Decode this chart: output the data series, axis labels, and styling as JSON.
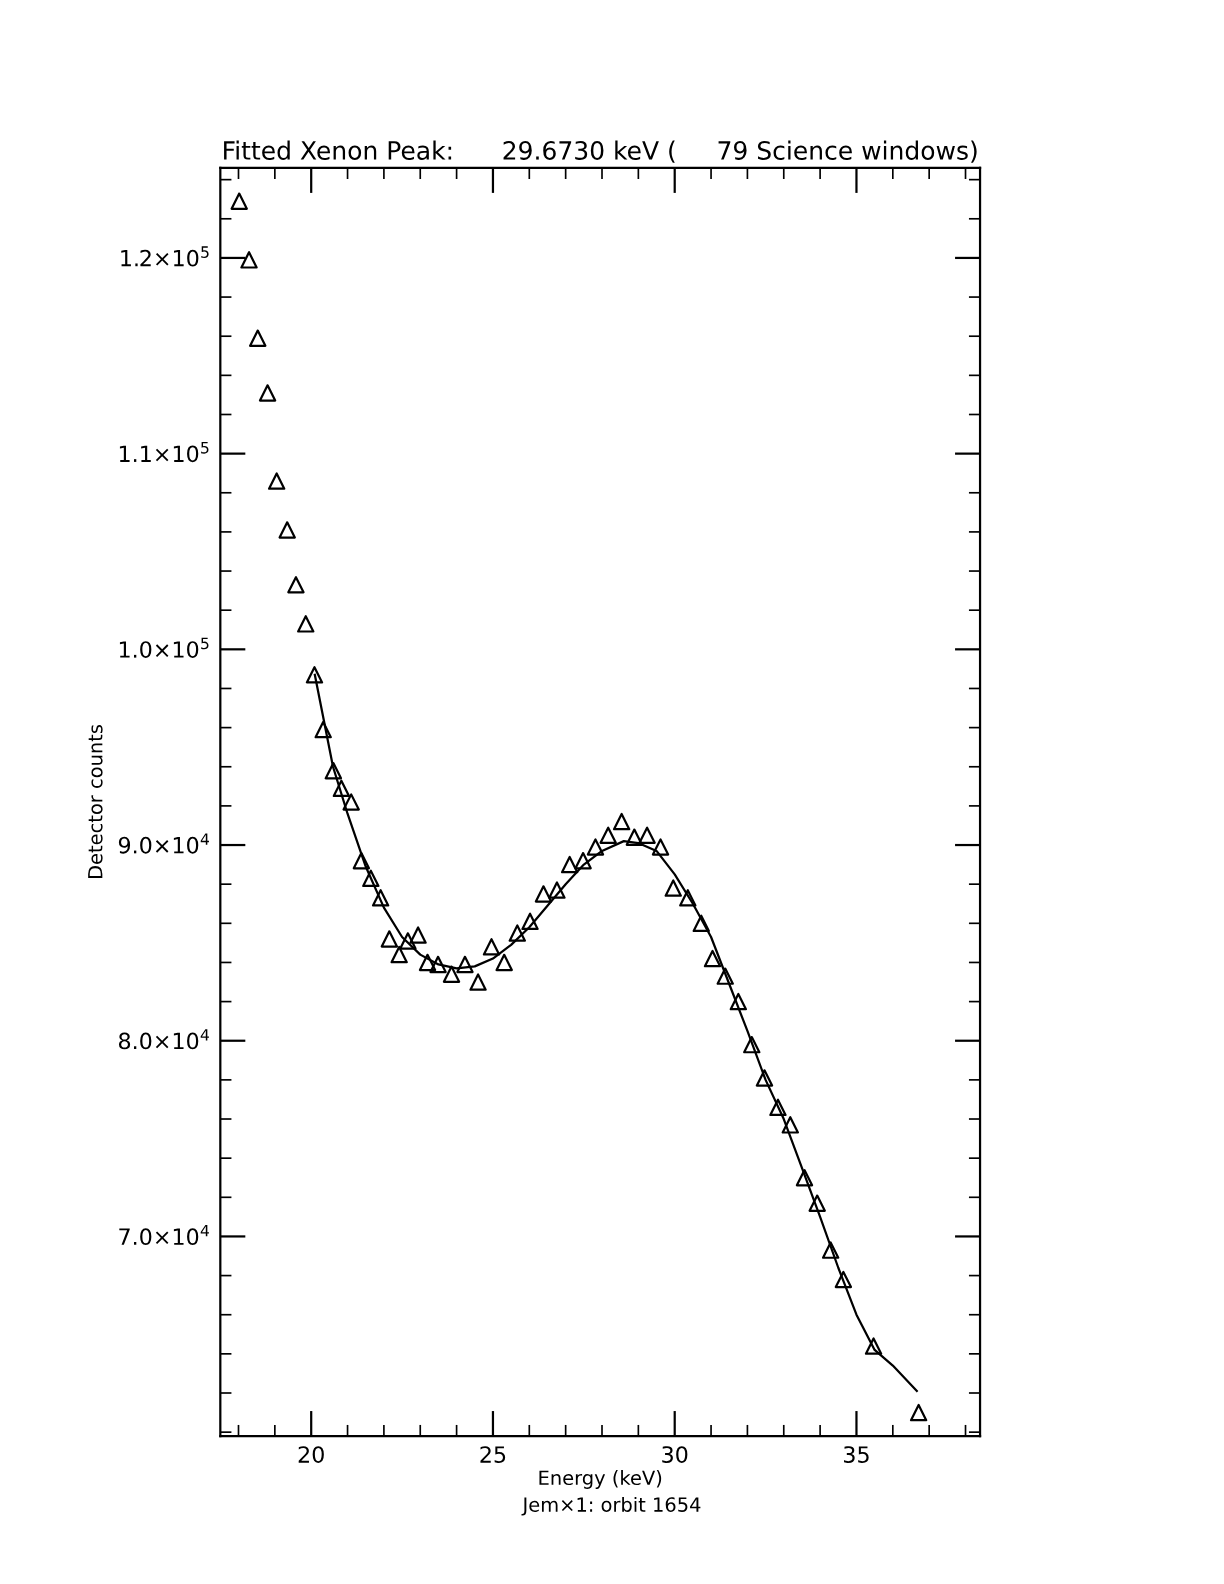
{
  "chart_data": {
    "type": "scatter",
    "title": "Fitted Xenon Peak:      29.6730 keV (     79 Science windows)",
    "xlabel": "Energy (keV)",
    "ylabel": "Detector counts",
    "annotations": [
      "Jem×1: orbit 1654"
    ],
    "xlim": [
      17.5,
      38.4
    ],
    "ylim": [
      59800,
      124600
    ],
    "xticks": [
      20,
      25,
      30,
      35
    ],
    "yticks": [
      {
        "value": 70000,
        "label": "7.0×10$^{4}$"
      },
      {
        "value": 80000,
        "label": "8.0×10$^{4}$"
      },
      {
        "value": 90000,
        "label": "9.0×10$^{4}$"
      },
      {
        "value": 100000,
        "label": "1.0×10$^{5}$"
      },
      {
        "value": 110000,
        "label": "1.1×10$^{5}$"
      },
      {
        "value": 120000,
        "label": "1.2×10$^{5}$"
      }
    ],
    "grid": false,
    "legend": false,
    "series": [
      {
        "color": "#000000",
        "marker": "triangle",
        "x": [
          18.02,
          18.29,
          18.53,
          18.8,
          19.05,
          19.34,
          19.58,
          19.85,
          20.09,
          20.33,
          20.61,
          20.83,
          21.1,
          21.38,
          21.64,
          21.91,
          22.15,
          22.42,
          22.66,
          22.94,
          23.2,
          23.49,
          23.86,
          24.23,
          24.59,
          24.96,
          25.31,
          25.67,
          26.02,
          26.39,
          26.76,
          27.11,
          27.48,
          27.82,
          28.17,
          28.54,
          28.89,
          29.24,
          29.61,
          29.96,
          30.36,
          30.73,
          31.04,
          31.39,
          31.75,
          32.12,
          32.47,
          32.84,
          33.18,
          33.57,
          33.92,
          34.29,
          34.64,
          35.47,
          36.71
        ],
        "values": [
          122900,
          119900,
          115900,
          113100,
          108600,
          106100,
          103300,
          101300,
          98700,
          95900,
          93800,
          92900,
          92200,
          89200,
          88300,
          87300,
          85200,
          84400,
          85100,
          85400,
          84000,
          83900,
          83400,
          83900,
          83000,
          84800,
          84000,
          85500,
          86100,
          87500,
          87700,
          89000,
          89200,
          89900,
          90500,
          91200,
          90400,
          90500,
          89900,
          87800,
          87300,
          86000,
          84200,
          83300,
          82000,
          79800,
          78100,
          76600,
          75700,
          73000,
          71700,
          69300,
          67800,
          64400,
          61000
        ]
      },
      {
        "type": "line",
        "color": "#000000",
        "marker": "none",
        "line_style": "solid",
        "x": [
          20.1,
          20.6,
          21.0,
          21.5,
          22.0,
          22.5,
          23.0,
          23.5,
          24.0,
          24.5,
          25.0,
          25.5,
          26.0,
          26.5,
          27.0,
          27.5,
          28.0,
          28.6,
          29.0,
          29.5,
          30.0,
          30.5,
          31.0,
          31.5,
          32.0,
          32.5,
          33.0,
          33.5,
          34.0,
          34.5,
          35.0,
          35.5,
          36.0,
          36.66
        ],
        "values": [
          98700,
          94000,
          91600,
          88900,
          86800,
          85300,
          84400,
          83900,
          83700,
          83800,
          84200,
          84900,
          85800,
          86900,
          88000,
          89000,
          89700,
          90200,
          90100,
          89700,
          88500,
          87000,
          85300,
          82900,
          80500,
          78000,
          76000,
          73500,
          71000,
          68400,
          66000,
          64200,
          63400,
          62100
        ]
      }
    ]
  }
}
